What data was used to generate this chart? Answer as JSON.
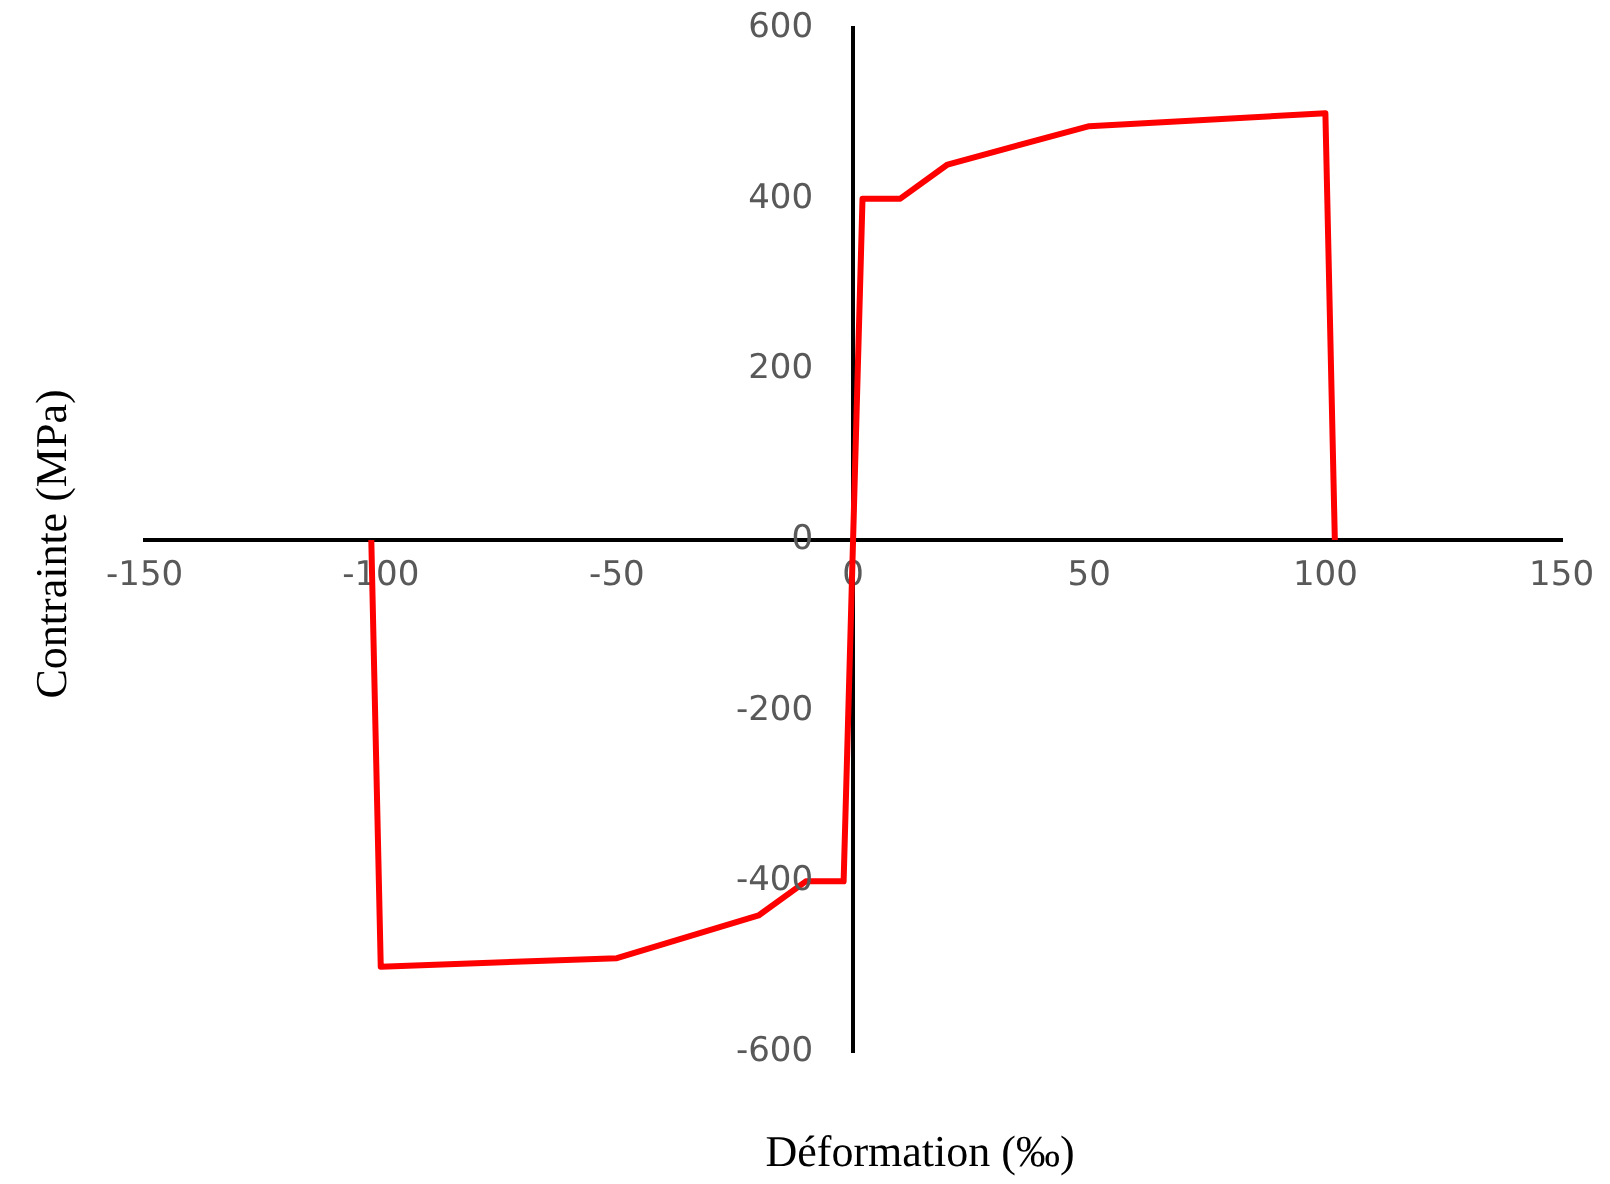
{
  "chart_data": {
    "type": "line",
    "xlabel": "Déformation (‰)",
    "ylabel": "Contrainte (MPa)",
    "x": [
      -102,
      -100,
      -50,
      -20,
      -10,
      -2,
      2,
      10,
      20,
      50,
      100,
      102
    ],
    "series": [
      {
        "color": "#ff0000",
        "values": [
          0,
          -500,
          -490,
          -440,
          -400,
          -400,
          400,
          400,
          440,
          485,
          500,
          0
        ]
      }
    ],
    "xlim": [
      -150,
      150
    ],
    "xticks": [
      -150,
      -100,
      -50,
      0,
      50,
      100,
      150
    ],
    "ylim": [
      -600,
      600
    ],
    "yticks": [
      -600,
      -400,
      -200,
      0,
      200,
      400,
      600
    ],
    "grid": false,
    "legend": false,
    "marker": "none",
    "line_style": "solid"
  }
}
